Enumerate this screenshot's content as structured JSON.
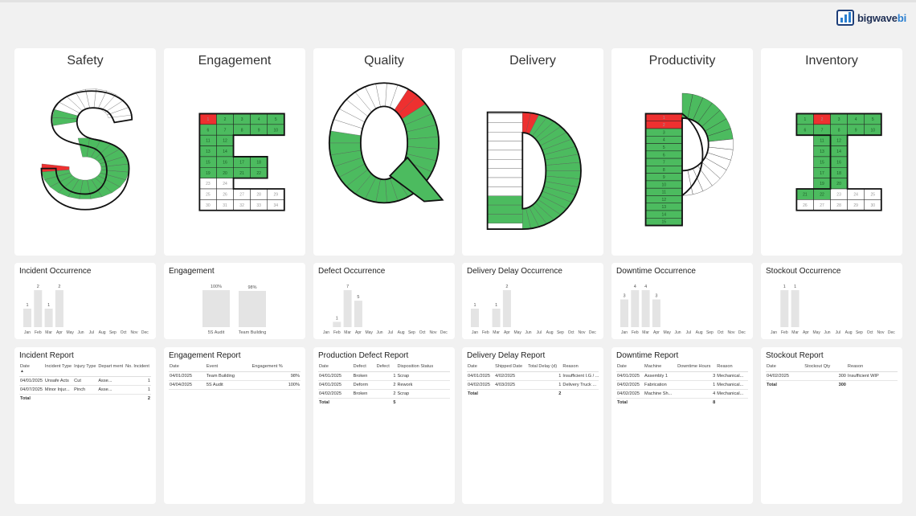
{
  "brand": {
    "name_part1": "bigwave",
    "name_part2": "bi"
  },
  "colors": {
    "good": "#4cbb5f",
    "bad": "#ee3030",
    "empty": "#ffffff",
    "bar": "#e4e4e4"
  },
  "months": [
    "Jan",
    "Feb",
    "Mar",
    "Apr",
    "May",
    "Jun",
    "Jul",
    "Aug",
    "Sep",
    "Oct",
    "Nov",
    "Dec"
  ],
  "panels": [
    {
      "key": "safety",
      "title": "Safety",
      "letter": "S",
      "bad_days": [
        1,
        20
      ],
      "chart": {
        "title": "Incident Occurrence",
        "values": [
          1,
          2,
          1,
          2,
          null,
          null,
          null,
          null,
          null,
          null,
          null,
          null
        ],
        "max": 2
      },
      "report": {
        "title": "Incident Report",
        "columns": [
          "Date",
          "Incident Type",
          "Injury Type",
          "Depart ment",
          "No. Incident"
        ],
        "rows": [
          [
            "04/01/2025",
            "Unsafe Acts",
            "Cut",
            "Asse...",
            "1"
          ],
          [
            "04/07/2025",
            "Minor Injur...",
            "Pinch",
            "Asse...",
            "1"
          ]
        ],
        "total": [
          "Total",
          "",
          "",
          "",
          "2"
        ]
      }
    },
    {
      "key": "engagement",
      "title": "Engagement",
      "letter": "E",
      "bad_days": [
        1
      ],
      "chart": {
        "title": "Engagement",
        "categories": [
          "5S Audit",
          "Team Building"
        ],
        "labels": [
          "100%",
          "98%"
        ],
        "values": [
          100,
          98
        ]
      },
      "report": {
        "title": "Engagement Report",
        "columns": [
          "Date",
          "Event",
          "Engagement %"
        ],
        "rows": [
          [
            "04/01/2025",
            "Team Building",
            "98%"
          ],
          [
            "04/04/2025",
            "5S Audit",
            "100%"
          ]
        ],
        "total": null
      }
    },
    {
      "key": "quality",
      "title": "Quality",
      "letter": "Q",
      "bad_days": [
        1,
        2
      ],
      "chart": {
        "title": "Defect Occurrence",
        "values": [
          null,
          1,
          7,
          5,
          null,
          null,
          null,
          null,
          null,
          null,
          null,
          null
        ],
        "max": 7
      },
      "report": {
        "title": "Production Defect Report",
        "columns": [
          "Date",
          "Defect",
          "Defect",
          "Disposition Status"
        ],
        "rows": [
          [
            "04/01/2025",
            "Broken",
            "1",
            "Scrap"
          ],
          [
            "04/01/2025",
            "Deform",
            "2",
            "Rework"
          ],
          [
            "04/02/2025",
            "Broken",
            "2",
            "Scrap"
          ]
        ],
        "total": [
          "Total",
          "",
          "5",
          ""
        ]
      }
    },
    {
      "key": "delivery",
      "title": "Delivery",
      "letter": "D",
      "bad_days": [
        1,
        2
      ],
      "chart": {
        "title": "Delivery Delay Occurrence",
        "values": [
          1,
          null,
          1,
          2,
          null,
          null,
          null,
          null,
          null,
          null,
          null,
          null
        ],
        "max": 2
      },
      "report": {
        "title": "Delivery Delay Report",
        "columns": [
          "Date",
          "Shipped Date",
          "Total Delay (d)",
          "Reason"
        ],
        "rows": [
          [
            "04/01/2025",
            "4/02/2025",
            "1",
            "Insufficient I.G / ..."
          ],
          [
            "04/02/2025",
            "4/03/2025",
            "1",
            "Delivery Truck ..."
          ]
        ],
        "total": [
          "Total",
          "",
          "2",
          ""
        ]
      }
    },
    {
      "key": "productivity",
      "title": "Productivity",
      "letter": "P",
      "bad_days": [
        1,
        2
      ],
      "chart": {
        "title": "Downtime Occurrence",
        "values": [
          3,
          4,
          4,
          3,
          null,
          null,
          null,
          null,
          null,
          null,
          null,
          null
        ],
        "max": 4
      },
      "report": {
        "title": "Downtime Report",
        "columns": [
          "Date",
          "Machine",
          "Downtime Hours",
          "Reason"
        ],
        "rows": [
          [
            "04/01/2025",
            "Assembly 1",
            "3",
            "Mechanical..."
          ],
          [
            "04/02/2025",
            "Fabrication",
            "1",
            "Mechanical..."
          ],
          [
            "04/02/2025",
            "Machine Sh...",
            "4",
            "Mechanical..."
          ]
        ],
        "total": [
          "Total",
          "",
          "8",
          ""
        ]
      }
    },
    {
      "key": "inventory",
      "title": "Inventory",
      "letter": "I",
      "bad_days": [
        2
      ],
      "chart": {
        "title": "Stockout Occurrence",
        "values": [
          null,
          1,
          1,
          null,
          null,
          null,
          null,
          null,
          null,
          null,
          null,
          null
        ],
        "max": 1
      },
      "report": {
        "title": "Stockout Report",
        "columns": [
          "Date",
          "Stockout Qty",
          "Reason"
        ],
        "rows": [
          [
            "04/02/2025",
            "300",
            "Insufficient WIP"
          ]
        ],
        "total": [
          "Total",
          "300",
          ""
        ]
      }
    }
  ]
}
